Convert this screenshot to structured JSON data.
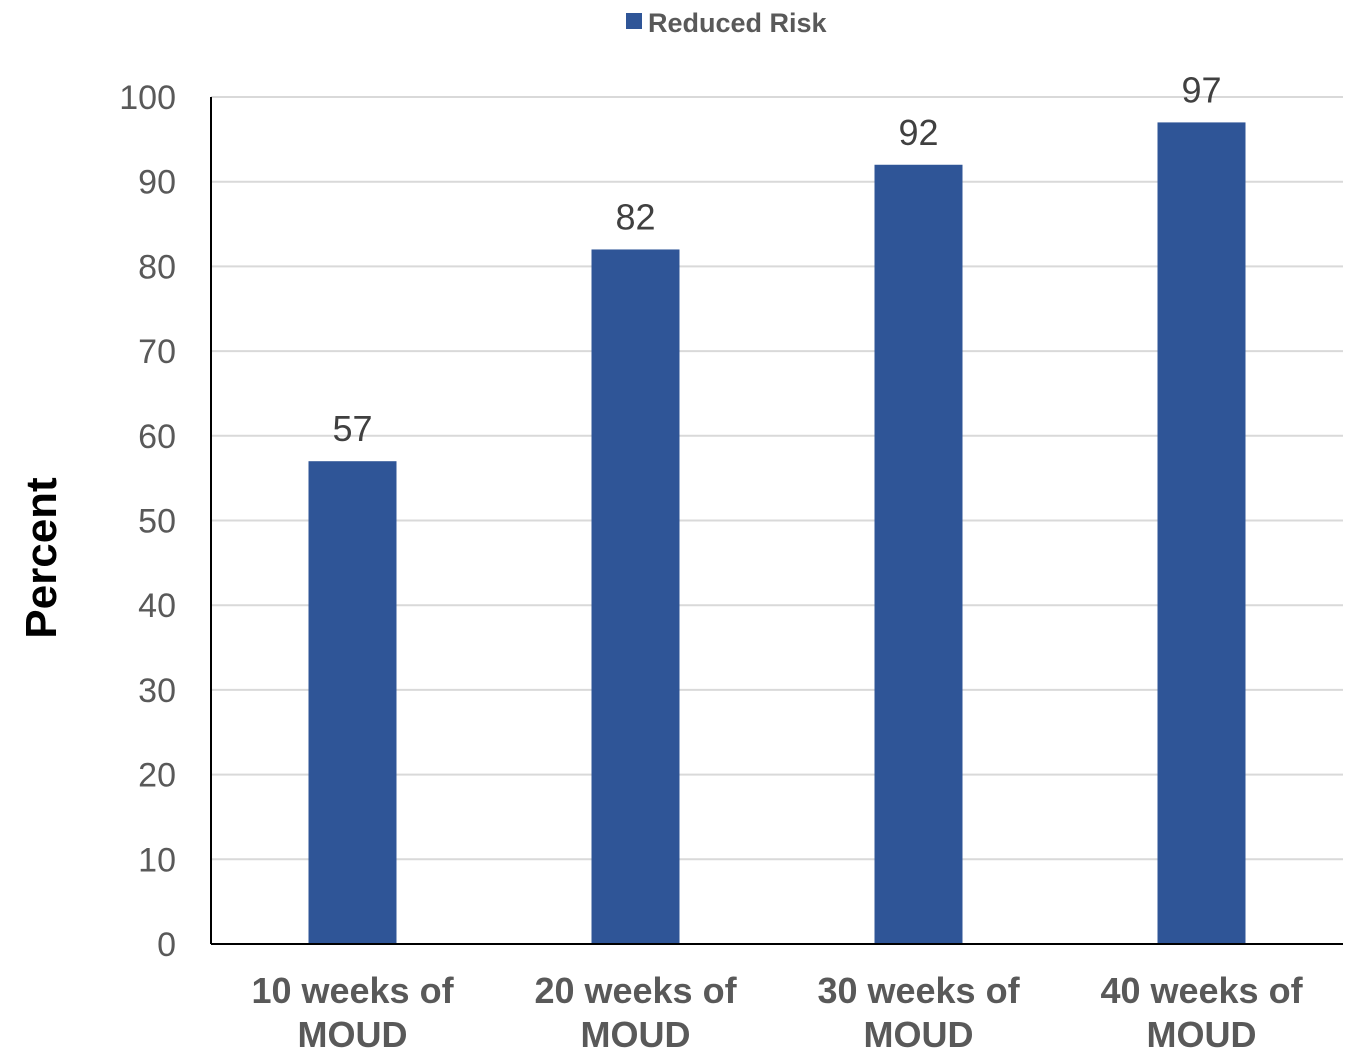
{
  "chart_data": {
    "type": "bar",
    "categories": [
      [
        "10 weeks of",
        "MOUD"
      ],
      [
        "20 weeks of",
        "MOUD"
      ],
      [
        "30 weeks of",
        "MOUD"
      ],
      [
        "40 weeks of",
        "MOUD"
      ]
    ],
    "series": [
      {
        "name": "Reduced Risk",
        "values": [
          57,
          82,
          92,
          97
        ],
        "color": "#2f5597"
      }
    ],
    "ylabel": "Percent",
    "xlabel": "",
    "ylim": [
      0,
      100
    ],
    "yticks": [
      0,
      10,
      20,
      30,
      40,
      50,
      60,
      70,
      80,
      90,
      100
    ],
    "grid": true,
    "legend": "top-center",
    "data_labels": true
  }
}
